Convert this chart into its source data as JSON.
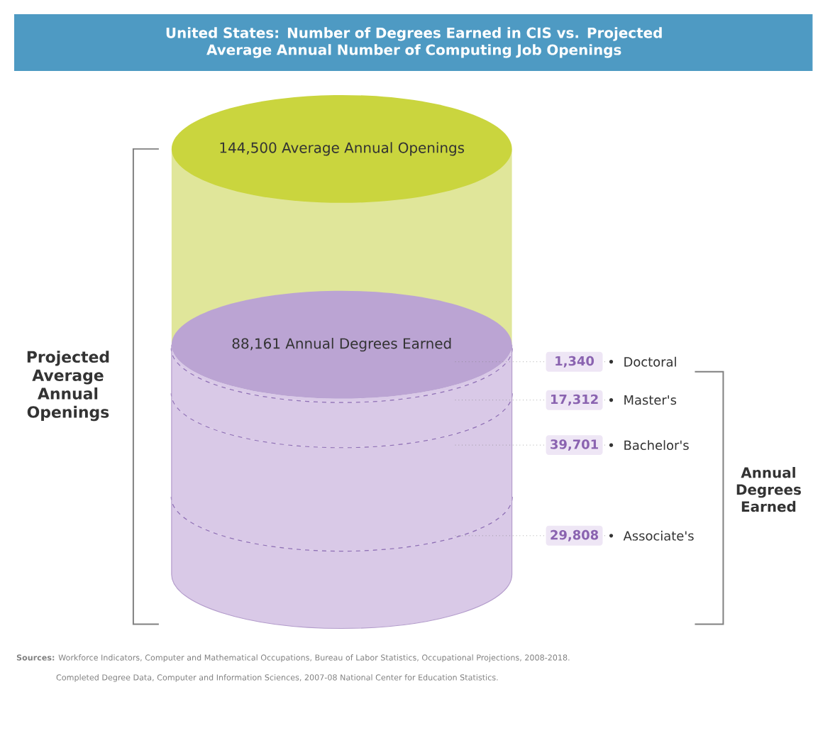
{
  "chart_data": {
    "type": "other",
    "title": "United States: Number of Degrees Earned in CIS vs. Projected Average Annual Number of Computing Job Openings",
    "categories": [
      "Doctoral",
      "Master's",
      "Bachelor's",
      "Associate's"
    ],
    "values": [
      1340,
      17312,
      39701,
      29808
    ],
    "value_labels": [
      "1,340",
      "17,312",
      "39,701",
      "29,808"
    ],
    "ylabel": "Projected Average Annual Openings",
    "y2label": "Annual Degrees Earned",
    "annotations": [
      "144,500 Average Annual Openings",
      "88,161 Annual Degrees Earned",
      "**Sources:** Workforce Indicators, Computer and Mathematical Occupations, Bureau of Labor Statistics, Occupational Projections, 2008-2018.",
      "Completed Degree Data, Computer and Information Sciences, 2007-08 National Center for Education Statistics."
    ]
  }
}
